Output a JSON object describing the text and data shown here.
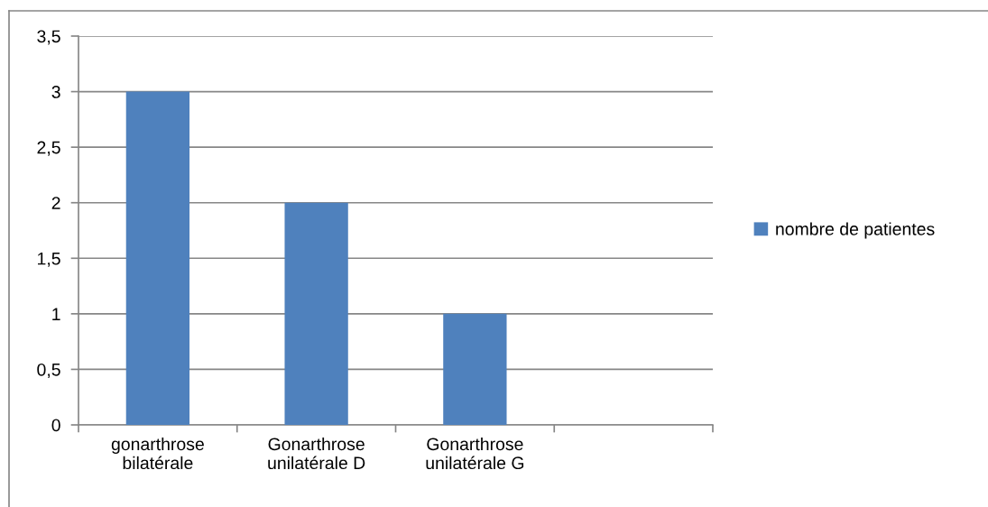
{
  "chart_data": {
    "type": "bar",
    "categories": [
      "gonarthrose bilatérale",
      "Gonarthrose unilatérale D",
      "Gonarthrose unilatérale G",
      null
    ],
    "series": [
      {
        "name": "nombre de patientes",
        "color": "#4f81bd",
        "values": [
          3,
          2,
          1,
          null
        ]
      }
    ],
    "ylim": [
      0,
      3.5
    ],
    "yticks": [
      0,
      {
        "value": 0.5,
        "label": "0,5"
      },
      1,
      {
        "value": 1.5,
        "label": "1,5"
      },
      2,
      {
        "value": 2.5,
        "label": "2,5"
      },
      3,
      {
        "value": 3.5,
        "label": "3,5"
      }
    ],
    "grid": "y",
    "legend": "right"
  }
}
